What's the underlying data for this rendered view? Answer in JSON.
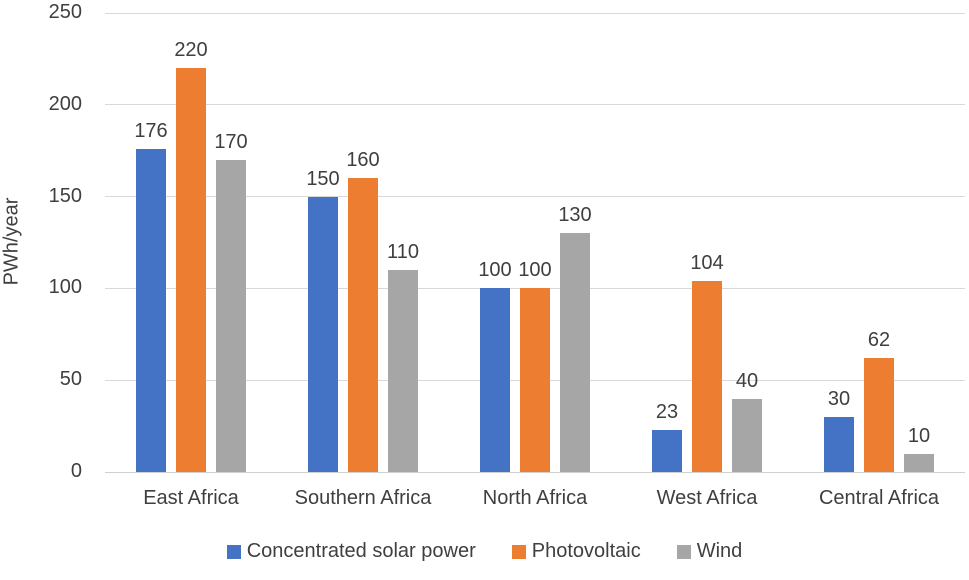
{
  "chart_data": {
    "type": "bar",
    "title": "",
    "categories": [
      "East Africa",
      "Southern Africa",
      "North Africa",
      "West Africa",
      "Central Africa"
    ],
    "series": [
      {
        "name": "Concentrated solar power",
        "color": "#4472C4",
        "values": [
          176,
          150,
          100,
          23,
          30
        ]
      },
      {
        "name": "Photovoltaic",
        "color": "#ED7D31",
        "values": [
          220,
          160,
          100,
          104,
          62
        ]
      },
      {
        "name": "Wind",
        "color": "#A6A6A6",
        "values": [
          170,
          110,
          130,
          40,
          10
        ]
      }
    ],
    "xlabel": "",
    "ylabel": "PWh/year",
    "ylim": [
      0,
      250
    ],
    "yticks": [
      0,
      50,
      100,
      150,
      200,
      250
    ],
    "grid": true,
    "data_labels": true,
    "legend_position": "bottom"
  },
  "colors": {
    "background": "#ffffff",
    "gridline": "#d9d9d9",
    "axis_line": "#d0d0d0",
    "text": "#3f3f3f"
  }
}
